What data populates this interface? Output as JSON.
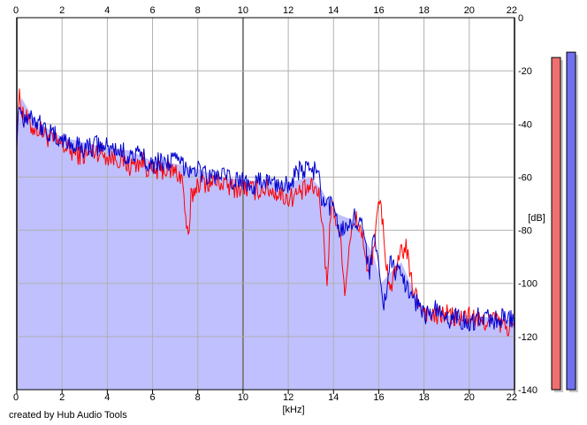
{
  "credit": "created by Hub Audio Tools",
  "colors": {
    "background": "#ffffff",
    "plot_fill": "#c0c0ff",
    "grid": "#b0b0b0",
    "grid_major": "#808080",
    "series_red": "#ff0000",
    "series_blue": "#0000d0",
    "meter_red": "#f07070",
    "meter_blue": "#7070f0"
  },
  "chart_data": {
    "type": "line",
    "title": "",
    "xlabel": "[kHz]",
    "ylabel": "[dB]",
    "xlim": [
      0,
      22
    ],
    "ylim": [
      -140,
      0
    ],
    "x_ticks": [
      "0",
      "2",
      "4",
      "6",
      "8",
      "10",
      "12",
      "14",
      "16",
      "18",
      "20",
      "22"
    ],
    "y_ticks": [
      "0",
      "-20",
      "-40",
      "-60",
      "-80",
      "-100",
      "-120",
      "-140"
    ],
    "grid": true,
    "envelope": {
      "x": [
        0,
        0.2,
        0.6,
        1,
        2,
        3,
        4,
        5,
        6,
        7,
        8,
        9,
        10,
        11,
        12,
        13,
        13.5,
        13.8,
        14.2,
        14.8,
        15.3,
        15.8,
        16.1,
        16.5,
        17,
        17.4,
        18,
        19,
        20,
        21,
        22
      ],
      "values": [
        -45,
        -30,
        -36,
        -40,
        -45,
        -47,
        -49,
        -50,
        -54,
        -55,
        -57,
        -60,
        -61,
        -62,
        -62,
        -60,
        -65,
        -70,
        -74,
        -76,
        -82,
        -90,
        -100,
        -96,
        -92,
        -100,
        -110,
        -112,
        -112,
        -113,
        -114
      ]
    },
    "series": [
      {
        "color": "red",
        "x": [
          0,
          0.1,
          0.3,
          0.6,
          1,
          1.5,
          2,
          2.5,
          3,
          3.5,
          4,
          4.5,
          5,
          5.5,
          6,
          6.5,
          7,
          7.3,
          7.5,
          7.6,
          7.7,
          8,
          8.5,
          9,
          9.5,
          10,
          10.5,
          11,
          11.5,
          12,
          12.5,
          13,
          13.3,
          13.5,
          13.7,
          13.9,
          14.2,
          14.4,
          14.5,
          14.7,
          15,
          15.3,
          15.5,
          15.7,
          16,
          16.1,
          16.3,
          16.5,
          16.8,
          17,
          17.2,
          17.4,
          17.6,
          18,
          18.5,
          19,
          19.5,
          20,
          20.5,
          21,
          21.5,
          22
        ],
        "values": [
          -45,
          -30,
          -36,
          -41,
          -42,
          -46,
          -48,
          -51,
          -52,
          -50,
          -52,
          -53,
          -56,
          -54,
          -58,
          -57,
          -58,
          -60,
          -78,
          -86,
          -68,
          -62,
          -62,
          -62,
          -64,
          -64,
          -65,
          -64,
          -66,
          -68,
          -66,
          -64,
          -65,
          -75,
          -100,
          -70,
          -78,
          -90,
          -105,
          -84,
          -76,
          -82,
          -98,
          -90,
          -72,
          -70,
          -90,
          -102,
          -95,
          -88,
          -86,
          -98,
          -104,
          -110,
          -113,
          -111,
          -114,
          -112,
          -115,
          -113,
          -116,
          -117
        ]
      },
      {
        "color": "blue",
        "x": [
          0,
          0.1,
          0.3,
          0.6,
          1,
          1.5,
          2,
          2.5,
          3,
          3.5,
          4,
          4.5,
          5,
          5.5,
          6,
          6.5,
          7,
          7.5,
          8,
          8.5,
          9,
          9.5,
          10,
          10.5,
          11,
          11.5,
          12,
          12.5,
          13,
          13.3,
          13.5,
          13.7,
          14,
          14.3,
          14.6,
          15,
          15.3,
          15.6,
          15.8,
          16,
          16.2,
          16.5,
          16.8,
          17.2,
          17.6,
          18,
          18.5,
          19,
          19.5,
          20,
          20.5,
          21,
          21.5,
          22
        ],
        "values": [
          -45,
          -32,
          -38,
          -36,
          -40,
          -44,
          -46,
          -48,
          -49,
          -48,
          -49,
          -50,
          -52,
          -52,
          -55,
          -54,
          -54,
          -56,
          -57,
          -60,
          -59,
          -62,
          -61,
          -63,
          -61,
          -63,
          -62,
          -58,
          -57,
          -58,
          -70,
          -72,
          -70,
          -80,
          -78,
          -75,
          -80,
          -95,
          -80,
          -96,
          -110,
          -92,
          -96,
          -100,
          -106,
          -112,
          -110,
          -114,
          -112,
          -116,
          -112,
          -114,
          -113,
          -114
        ]
      }
    ]
  },
  "level_meters": [
    {
      "color": "red",
      "level_db": -15
    },
    {
      "color": "blue",
      "level_db": -13
    }
  ]
}
